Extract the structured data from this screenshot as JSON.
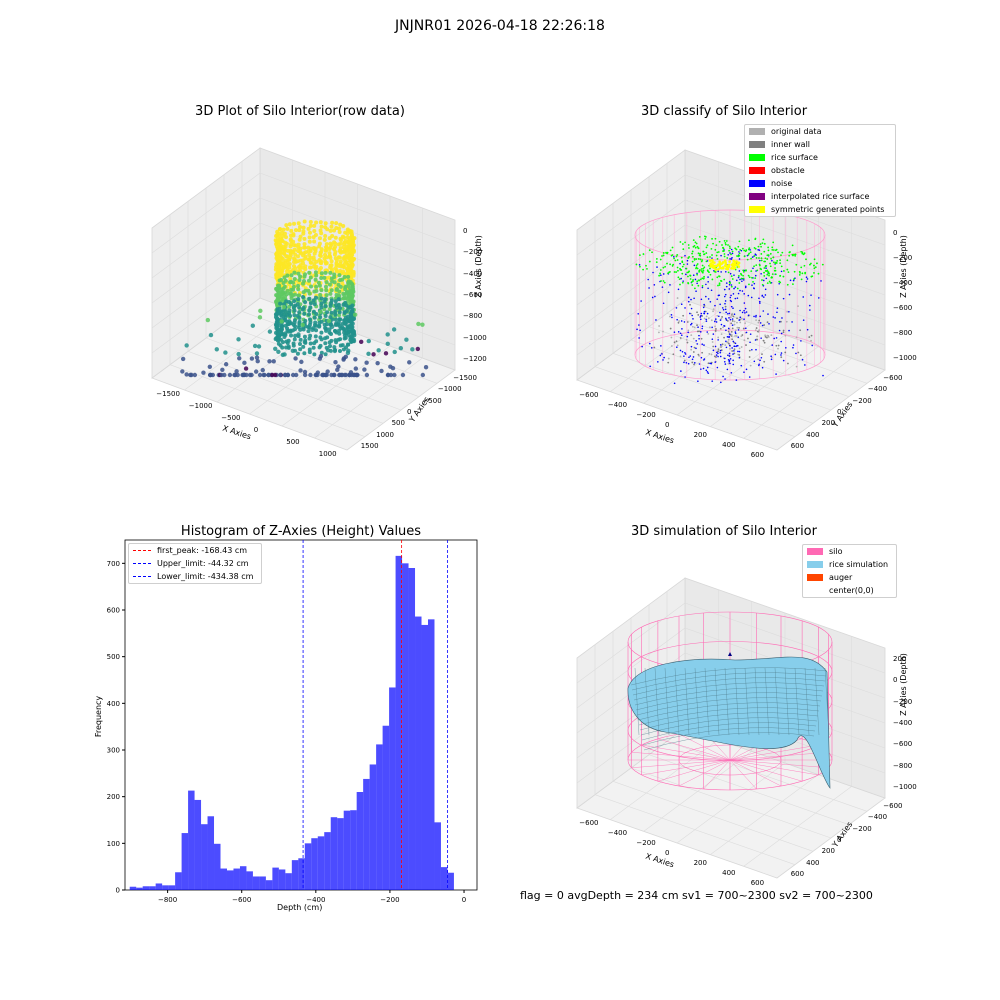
{
  "figure": {
    "suptitle": "JNJNR01 2026-04-18 22:26:18",
    "footer": "flag = 0     avgDepth = 234 cm  sv1 = 700~2300  sv2 = 700~2300"
  },
  "panels": {
    "raw": {
      "title": "3D Plot of Silo Interior(row data)",
      "xlabel": "X Axies",
      "ylabel": "Y Axies",
      "zlabel": "Z Axies (Depth)",
      "x_ticks": [
        "−1500",
        "−1000",
        "−500",
        "0",
        "500",
        "1000"
      ],
      "y_ticks": [
        "1500",
        "1000",
        "500",
        "0",
        "−500",
        "−1000",
        "−1500"
      ],
      "z_ticks": [
        "0",
        "−200",
        "−400",
        "−600",
        "−800",
        "−1000",
        "−1200"
      ],
      "colormap": [
        "#440154",
        "#3b528b",
        "#21918c",
        "#5ec962",
        "#fde725"
      ]
    },
    "classify": {
      "title": "3D classify of Silo Interior",
      "xlabel": "X Axies",
      "ylabel": "Y Axies",
      "zlabel": "Z Axies (Depth)",
      "x_ticks": [
        "−600",
        "−400",
        "−200",
        "0",
        "200",
        "400",
        "600"
      ],
      "y_ticks": [
        "600",
        "400",
        "200",
        "0",
        "−200",
        "−400",
        "−600"
      ],
      "z_ticks": [
        "0",
        "−200",
        "−400",
        "−600",
        "−800",
        "−1000"
      ],
      "legend": [
        {
          "label": "original data",
          "color": "#b0b0b0"
        },
        {
          "label": "inner wall",
          "color": "#808080"
        },
        {
          "label": "rice surface",
          "color": "#00ff00"
        },
        {
          "label": "obstacle",
          "color": "#ff0000"
        },
        {
          "label": "noise",
          "color": "#0000ff"
        },
        {
          "label": "interpolated rice surface",
          "color": "#800080"
        },
        {
          "label": "symmetric generated points",
          "color": "#ffff00"
        }
      ]
    },
    "simulation": {
      "title": "3D simulation of Silo Interior",
      "xlabel": "X Axies",
      "ylabel": "Y Axies",
      "zlabel": "Z Axies (Depth)",
      "x_ticks": [
        "−600",
        "−400",
        "−200",
        "0",
        "200",
        "400",
        "600"
      ],
      "y_ticks": [
        "600",
        "400",
        "200",
        "0",
        "−200",
        "−400",
        "−600"
      ],
      "z_ticks": [
        "200",
        "0",
        "−200",
        "−400",
        "−600",
        "−800",
        "−1000"
      ],
      "legend": [
        {
          "label": "silo",
          "color": "#ff69b4"
        },
        {
          "label": "rice simulation",
          "color": "#87ceeb"
        },
        {
          "label": "auger",
          "color": "#ff4500"
        },
        {
          "label": "center(0,0)",
          "color": ""
        }
      ]
    }
  },
  "chart_data": {
    "type": "bar",
    "title": "Histogram of Z-Axies (Height) Values",
    "xlabel": "Depth (cm)",
    "ylabel": "Frequency",
    "xlim": [
      -915,
      35
    ],
    "ylim": [
      0,
      750
    ],
    "x_ticks": [
      -800,
      -600,
      -400,
      -200,
      0
    ],
    "y_ticks": [
      0,
      100,
      200,
      300,
      400,
      500,
      600,
      700
    ],
    "bar_color": "#0000ff",
    "bin_width": 17.5,
    "bins": [
      [
        -893.5,
        7
      ],
      [
        -876,
        5
      ],
      [
        -858.5,
        8
      ],
      [
        -841,
        8
      ],
      [
        -823.5,
        14
      ],
      [
        -806,
        10
      ],
      [
        -788.5,
        10
      ],
      [
        -771,
        38
      ],
      [
        -753.5,
        122
      ],
      [
        -736,
        213
      ],
      [
        -718.5,
        193
      ],
      [
        -701,
        141
      ],
      [
        -683.5,
        158
      ],
      [
        -666,
        99
      ],
      [
        -648.5,
        46
      ],
      [
        -631,
        42
      ],
      [
        -613.5,
        46
      ],
      [
        -596,
        51
      ],
      [
        -578.5,
        40
      ],
      [
        -561,
        29
      ],
      [
        -543.5,
        29
      ],
      [
        -526,
        21
      ],
      [
        -508.5,
        48
      ],
      [
        -491,
        44
      ],
      [
        -473.5,
        36
      ],
      [
        -456,
        64
      ],
      [
        -438.5,
        68
      ],
      [
        -421,
        100
      ],
      [
        -403.5,
        111
      ],
      [
        -386,
        115
      ],
      [
        -368.5,
        124
      ],
      [
        -351,
        156
      ],
      [
        -333.5,
        154
      ],
      [
        -316,
        170
      ],
      [
        -298.5,
        171
      ],
      [
        -281,
        210
      ],
      [
        -263.5,
        238
      ],
      [
        -246,
        269
      ],
      [
        -228.5,
        312
      ],
      [
        -211,
        352
      ],
      [
        -193.5,
        434
      ],
      [
        -176,
        716
      ],
      [
        -158.5,
        700
      ],
      [
        -141,
        690
      ],
      [
        -123.5,
        586
      ],
      [
        -106,
        568
      ],
      [
        -88.5,
        580
      ],
      [
        -71,
        145
      ],
      [
        -53.5,
        49
      ],
      [
        -36,
        37
      ]
    ],
    "vlines": [
      {
        "label": "first_peak: -168.43 cm",
        "x": -168.43,
        "color": "#ff0000"
      },
      {
        "label": "Upper_limit: -44.32 cm",
        "x": -44.32,
        "color": "#0000ff"
      },
      {
        "label": "Lower_limit: -434.38 cm",
        "x": -434.38,
        "color": "#0000ff"
      }
    ],
    "legend_position": "upper-left",
    "grid": false
  }
}
